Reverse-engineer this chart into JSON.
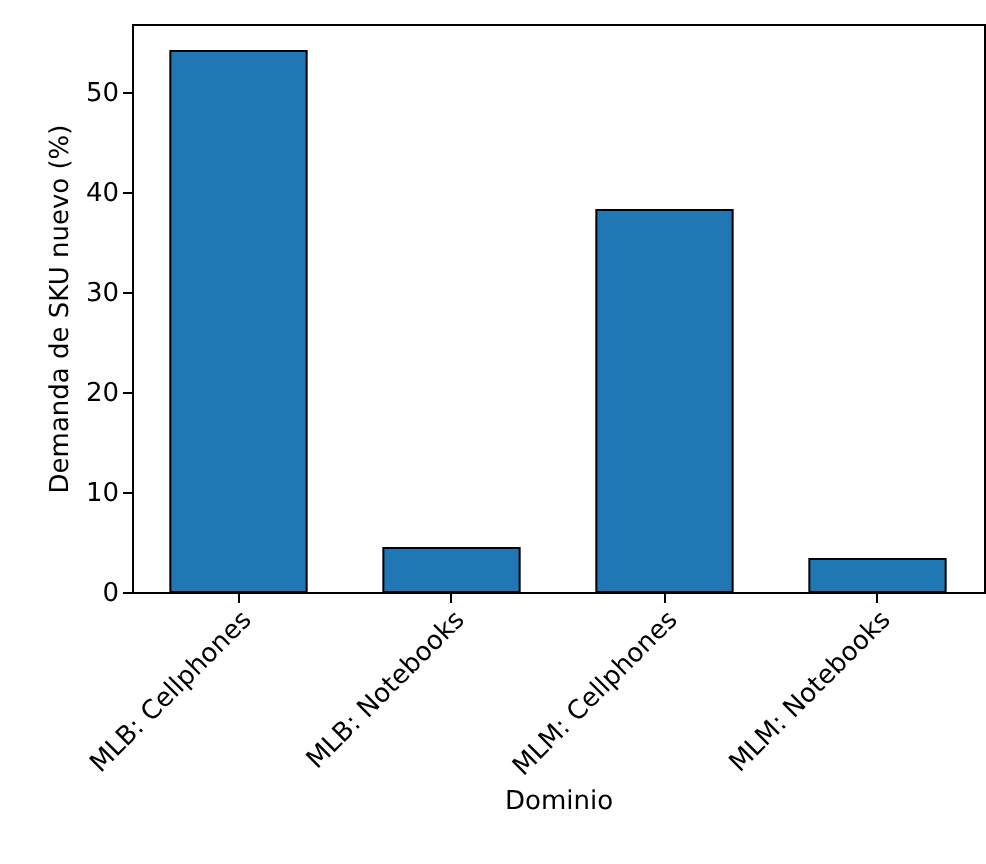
{
  "chart_data": {
    "type": "bar",
    "xlabel": "Dominio",
    "ylabel": "Demanda de SKU nuevo (%)",
    "categories": [
      "MLB: Cellphones",
      "MLB: Notebooks",
      "MLM: Cellphones",
      "MLM: Notebooks"
    ],
    "values": [
      54.1,
      4.4,
      38.2,
      3.3
    ],
    "color": "#1f77b4",
    "ylim": [
      0,
      56.8
    ],
    "yticks": [
      0,
      10,
      20,
      30,
      40,
      50
    ],
    "grid": false
  }
}
